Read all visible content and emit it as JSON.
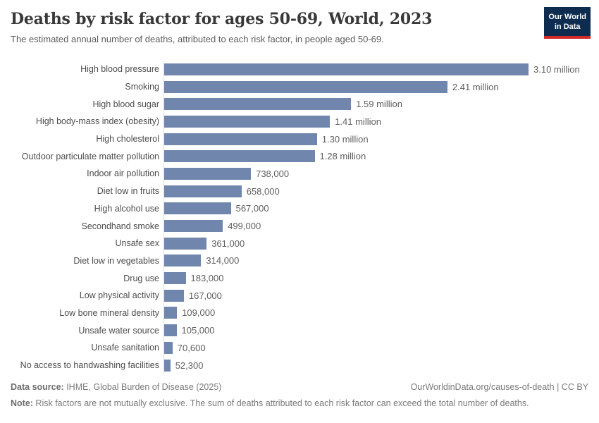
{
  "header": {
    "title": "Deaths by risk factor for ages 50-69, World, 2023",
    "subtitle": "The estimated annual number of deaths, attributed to each risk factor, in people aged 50-69.",
    "logo": {
      "line1": "Our World",
      "line2": "in Data"
    }
  },
  "chart_data": {
    "type": "bar",
    "orientation": "horizontal",
    "title": "Deaths by risk factor for ages 50-69, World, 2023",
    "xlabel": "",
    "ylabel": "",
    "xlim": [
      0,
      3100000
    ],
    "grid": false,
    "legend": "none",
    "bar_color": "#7086ad",
    "categories": [
      "High blood pressure",
      "Smoking",
      "High blood sugar",
      "High body-mass index (obesity)",
      "High cholesterol",
      "Outdoor particulate matter pollution",
      "Indoor air pollution",
      "Diet low in fruits",
      "High alcohol use",
      "Secondhand smoke",
      "Unsafe sex",
      "Diet low in vegetables",
      "Drug use",
      "Low physical activity",
      "Low bone mineral density",
      "Unsafe water source",
      "Unsafe sanitation",
      "No access to handwashing facilities"
    ],
    "values": [
      3100000,
      2410000,
      1590000,
      1410000,
      1300000,
      1280000,
      738000,
      658000,
      567000,
      499000,
      361000,
      314000,
      183000,
      167000,
      109000,
      105000,
      70600,
      52300
    ],
    "value_labels": [
      "3.10 million",
      "2.41 million",
      "1.59 million",
      "1.41 million",
      "1.30 million",
      "1.28 million",
      "738,000",
      "658,000",
      "567,000",
      "499,000",
      "361,000",
      "314,000",
      "183,000",
      "167,000",
      "109,000",
      "105,000",
      "70,600",
      "52,300"
    ]
  },
  "footer": {
    "datasource_label": "Data source:",
    "datasource_text": " IHME, Global Burden of Disease (2025)",
    "link": "OurWorldinData.org/causes-of-death | CC BY",
    "note_label": "Note:",
    "note_text": " Risk factors are not mutually exclusive. The sum of deaths attributed to each risk factor can exceed the total number of deaths."
  },
  "colors": {
    "bar": "#7086ad",
    "axis_line": "#dcdcdc",
    "title_text": "#383838",
    "subtitle_text": "#5c5c5c",
    "label_text": "#4d4d4d",
    "value_text": "#5f5f5f",
    "footer_text": "#7b7b7b",
    "logo_bg": "#0d2c4f",
    "logo_accent": "#d22b27"
  }
}
